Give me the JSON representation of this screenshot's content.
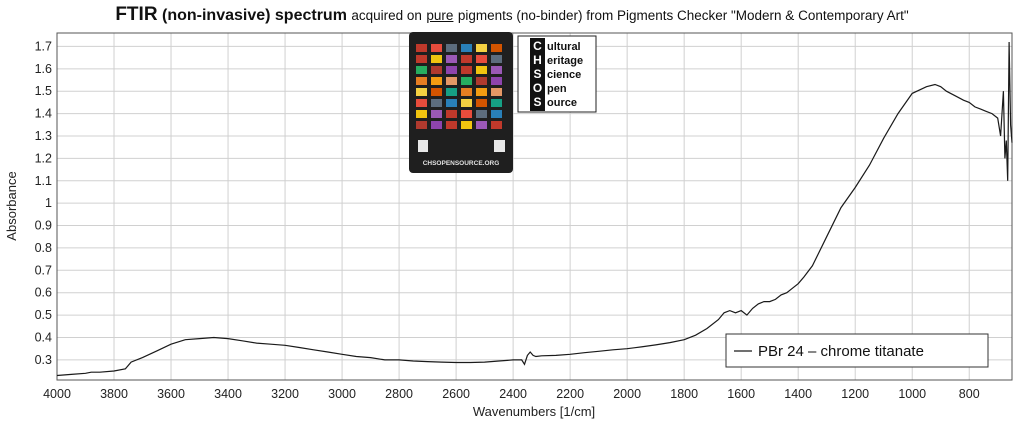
{
  "title": {
    "part1": "FTIR",
    "part2": "(non-invasive) spectrum",
    "part3": "acquired on",
    "part4": "pure",
    "part5": "pigments (no-binder) from Pigments Checker \"Modern & Contemporary Art\""
  },
  "logo": {
    "card_url": "CHSOPENSOURCE.ORG",
    "letters": [
      "C",
      "H",
      "S",
      "O",
      "S"
    ],
    "words": [
      "ultural",
      "eritage",
      "cience",
      "pen",
      "ource"
    ]
  },
  "colors": {
    "line": "#1a1a1a",
    "grid": "#d0d0d0",
    "card": "#1f1f1f"
  },
  "chart_data": {
    "type": "line",
    "xlabel": "Wavenumbers [1/cm]",
    "ylabel": "Absorbance",
    "xlim": [
      4000,
      650
    ],
    "ylim": [
      0.21,
      1.76
    ],
    "x_reversed": true,
    "grid": true,
    "legend_position": "bottom-right",
    "xticks": [
      4000,
      3800,
      3600,
      3400,
      3200,
      3000,
      2800,
      2600,
      2400,
      2200,
      2000,
      1800,
      1600,
      1400,
      1200,
      1000,
      800
    ],
    "xtick_labels": [
      "4000",
      "3800",
      "3600",
      "3400",
      "3200",
      "3000",
      "2800",
      "2600",
      "2400",
      "2200",
      "2000",
      "1800",
      "1600",
      "1400",
      "1200",
      "1000",
      "800"
    ],
    "yticks": [
      0.3,
      0.4,
      0.5,
      0.6,
      0.7,
      0.8,
      0.9,
      1.0,
      1.1,
      1.2,
      1.3,
      1.4,
      1.5,
      1.6,
      1.7
    ],
    "ytick_labels": [
      "0.3",
      "0.4",
      "0.5",
      "0.6",
      "0.7",
      "0.8",
      "0.9",
      "1",
      "1.1",
      "1.2",
      "1.3",
      "1.4",
      "1.5",
      "1.6",
      "1.7"
    ],
    "series": [
      {
        "name": "PBr 24 – chrome titanate",
        "x": [
          4000,
          3950,
          3900,
          3880,
          3850,
          3800,
          3760,
          3740,
          3700,
          3650,
          3600,
          3550,
          3500,
          3450,
          3400,
          3350,
          3300,
          3250,
          3200,
          3150,
          3100,
          3050,
          3000,
          2950,
          2900,
          2850,
          2800,
          2750,
          2700,
          2650,
          2600,
          2550,
          2500,
          2450,
          2400,
          2370,
          2360,
          2350,
          2340,
          2330,
          2320,
          2300,
          2250,
          2200,
          2150,
          2100,
          2050,
          2000,
          1950,
          1900,
          1850,
          1800,
          1760,
          1720,
          1680,
          1660,
          1640,
          1620,
          1600,
          1580,
          1560,
          1540,
          1520,
          1500,
          1480,
          1460,
          1440,
          1420,
          1400,
          1380,
          1350,
          1300,
          1250,
          1200,
          1150,
          1100,
          1050,
          1000,
          950,
          920,
          900,
          880,
          850,
          820,
          800,
          780,
          760,
          740,
          720,
          700,
          690,
          680,
          675,
          670,
          665,
          660,
          655,
          650
        ],
        "y": [
          0.23,
          0.235,
          0.24,
          0.245,
          0.245,
          0.25,
          0.26,
          0.29,
          0.31,
          0.34,
          0.37,
          0.39,
          0.395,
          0.4,
          0.395,
          0.385,
          0.375,
          0.37,
          0.365,
          0.355,
          0.345,
          0.335,
          0.325,
          0.315,
          0.31,
          0.3,
          0.3,
          0.295,
          0.292,
          0.29,
          0.288,
          0.288,
          0.29,
          0.295,
          0.3,
          0.3,
          0.28,
          0.32,
          0.335,
          0.32,
          0.315,
          0.318,
          0.32,
          0.325,
          0.332,
          0.338,
          0.345,
          0.35,
          0.358,
          0.367,
          0.377,
          0.39,
          0.41,
          0.44,
          0.48,
          0.51,
          0.52,
          0.51,
          0.52,
          0.5,
          0.53,
          0.55,
          0.56,
          0.56,
          0.57,
          0.59,
          0.6,
          0.62,
          0.64,
          0.67,
          0.72,
          0.85,
          0.98,
          1.07,
          1.17,
          1.29,
          1.4,
          1.49,
          1.52,
          1.53,
          1.52,
          1.5,
          1.48,
          1.46,
          1.45,
          1.43,
          1.42,
          1.41,
          1.4,
          1.38,
          1.3,
          1.5,
          1.2,
          1.28,
          1.1,
          1.72,
          1.35,
          1.27
        ]
      }
    ]
  }
}
